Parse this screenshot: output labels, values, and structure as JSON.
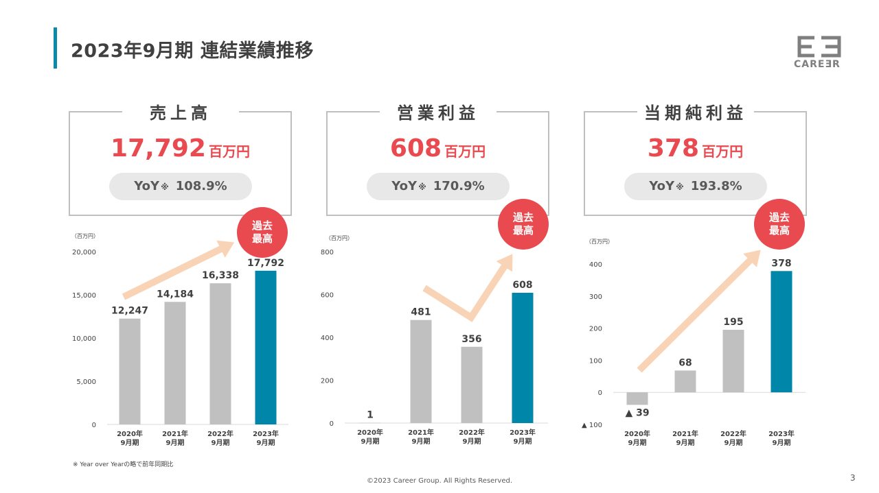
{
  "page": {
    "title": "2023年9月期 連結業績推移",
    "logo_text": "CAREƎR",
    "footnote": "※ Year over Yearの略で前年同期比",
    "copyright": "©2023 Career Group. All Rights Reserved.",
    "page_number": "3"
  },
  "colors": {
    "accent": "#0a8aa8",
    "highlight_bar": "#0086a8",
    "bar": "#c0c0c0",
    "value_red": "#e84a4f",
    "arrow": "#f9d3b6"
  },
  "kpis": [
    {
      "label": "売上高",
      "value": "17,792",
      "unit": "百万円",
      "yoy_prefix": "YoY",
      "yoy_mark": "※",
      "yoy_value": "108.9%",
      "badge_line1": "過去",
      "badge_line2": "最高"
    },
    {
      "label": "営業利益",
      "value": "608",
      "unit": "百万円",
      "yoy_prefix": "YoY",
      "yoy_mark": "※",
      "yoy_value": "170.9%",
      "badge_line1": "過去",
      "badge_line2": "最高"
    },
    {
      "label": "当期純利益",
      "value": "378",
      "unit": "百万円",
      "yoy_prefix": "YoY",
      "yoy_mark": "※",
      "yoy_value": "193.8%",
      "badge_line1": "過去",
      "badge_line2": "最高"
    }
  ],
  "chart_data": [
    {
      "type": "bar",
      "title": "売上高",
      "unit_label": "（百万円）",
      "categories": [
        [
          "2020年",
          "9月期"
        ],
        [
          "2021年",
          "9月期"
        ],
        [
          "2022年",
          "9月期"
        ],
        [
          "2023年",
          "9月期"
        ]
      ],
      "values": [
        12247,
        14184,
        16338,
        17792
      ],
      "value_labels": [
        "12,247",
        "14,184",
        "16,338",
        "17,792"
      ],
      "ylim": [
        0,
        20000
      ],
      "yticks": [
        0,
        5000,
        10000,
        15000,
        20000
      ],
      "ytick_labels": [
        "0",
        "5,000",
        "10,000",
        "15,000",
        "20,000"
      ],
      "highlight_index": 3
    },
    {
      "type": "bar",
      "title": "営業利益",
      "unit_label": "（百万円）",
      "categories": [
        [
          "2020年",
          "9月期"
        ],
        [
          "2021年",
          "9月期"
        ],
        [
          "2022年",
          "9月期"
        ],
        [
          "2023年",
          "9月期"
        ]
      ],
      "values": [
        1,
        481,
        356,
        608
      ],
      "value_labels": [
        "1",
        "481",
        "356",
        "608"
      ],
      "ylim": [
        0,
        800
      ],
      "yticks": [
        0,
        200,
        400,
        600,
        800
      ],
      "ytick_labels": [
        "0",
        "200",
        "400",
        "600",
        "800"
      ],
      "highlight_index": 3
    },
    {
      "type": "bar",
      "title": "当期純利益",
      "unit_label": "（百万円）",
      "categories": [
        [
          "2020年",
          "9月期"
        ],
        [
          "2021年",
          "9月期"
        ],
        [
          "2022年",
          "9月期"
        ],
        [
          "2023年",
          "9月期"
        ]
      ],
      "values": [
        -39,
        68,
        195,
        378
      ],
      "value_labels": [
        "▲ 39",
        "68",
        "195",
        "378"
      ],
      "ylim": [
        -100,
        400
      ],
      "yticks": [
        -100,
        0,
        100,
        200,
        300,
        400
      ],
      "ytick_labels": [
        "▲ 100",
        "0",
        "100",
        "200",
        "300",
        "400"
      ],
      "highlight_index": 3
    }
  ]
}
